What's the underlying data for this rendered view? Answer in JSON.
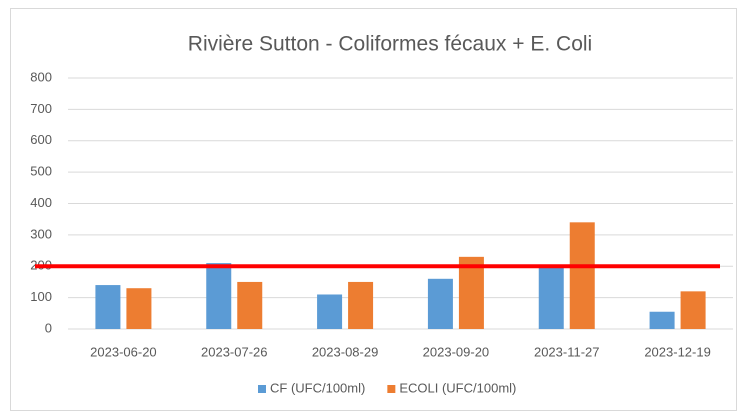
{
  "chart_data": {
    "type": "bar",
    "title": "Rivière Sutton - Coliformes fécaux + E. Coli",
    "categories": [
      "2023-06-20",
      "2023-07-26",
      "2023-08-29",
      "2023-09-20",
      "2023-11-27",
      "2023-12-19"
    ],
    "series": [
      {
        "name": "CF (UFC/100ml)",
        "color": "#5b9bd5",
        "values": [
          140,
          210,
          110,
          160,
          200,
          55
        ]
      },
      {
        "name": "ECOLI (UFC/100ml)",
        "color": "#ed7d31",
        "values": [
          130,
          150,
          150,
          230,
          340,
          120
        ]
      }
    ],
    "threshold": {
      "value": 200,
      "color": "#ff0000"
    },
    "ylim": [
      0,
      800
    ],
    "yticks": [
      0,
      100,
      200,
      300,
      400,
      500,
      600,
      700,
      800
    ],
    "grid": true,
    "legend": "bottom"
  }
}
